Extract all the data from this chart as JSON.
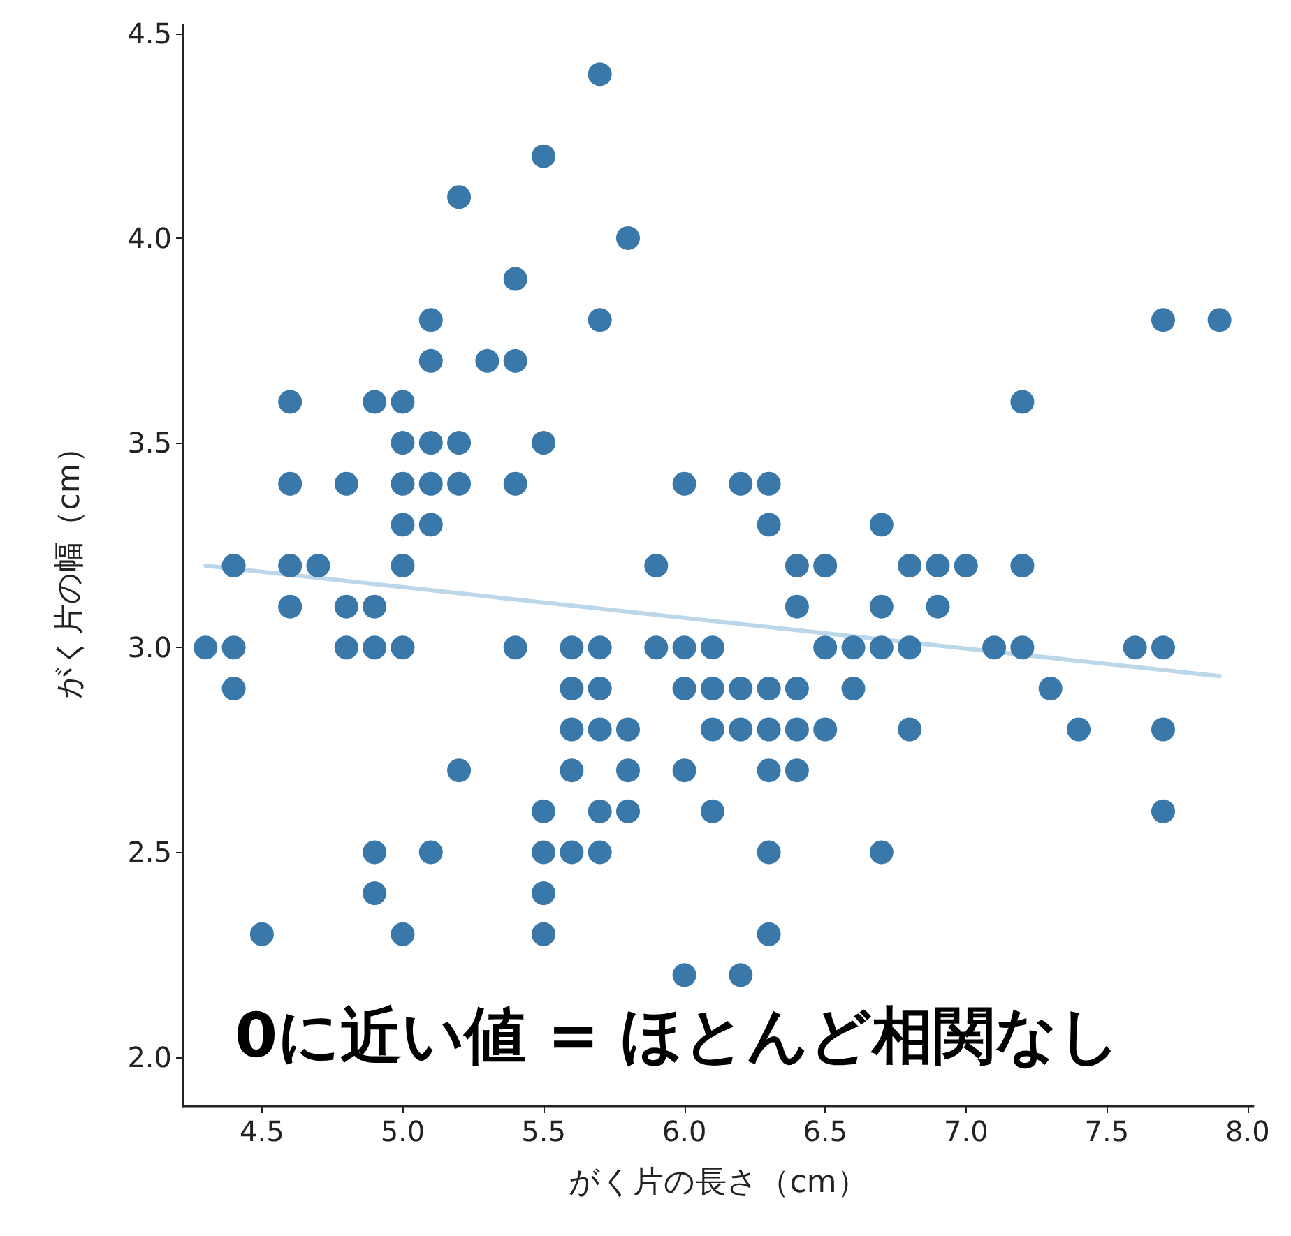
{
  "chart_data": {
    "type": "scatter",
    "xlabel": "がく片の長さ（cm）",
    "ylabel": "がく片の幅（cm）",
    "annotations": [
      "0に近い値 = ほとんど相関なし"
    ],
    "xlim": [
      4.22,
      8.02
    ],
    "ylim": [
      1.88,
      4.52
    ],
    "xticks": [
      {
        "value": 4.5,
        "label": "4.5"
      },
      {
        "value": 5,
        "label": "5.0"
      },
      {
        "value": 5.5,
        "label": "5.5"
      },
      {
        "value": 6,
        "label": "6.0"
      },
      {
        "value": 6.5,
        "label": "6.5"
      },
      {
        "value": 7,
        "label": "7.0"
      },
      {
        "value": 7.5,
        "label": "7.5"
      },
      {
        "value": 8,
        "label": "8.0"
      }
    ],
    "yticks": [
      {
        "value": 2,
        "label": "2.0"
      },
      {
        "value": 2.5,
        "label": "2.5"
      },
      {
        "value": 3,
        "label": "3.0"
      },
      {
        "value": 3.5,
        "label": "3.5"
      },
      {
        "value": 4,
        "label": "4.0"
      },
      {
        "value": 4.5,
        "label": "4.5"
      }
    ],
    "grid": false,
    "marker": "circle",
    "series": [
      {
        "color": "#3a78a9",
        "x": [
          4.3,
          4.4,
          4.4,
          4.4,
          4.5,
          4.6,
          4.6,
          4.6,
          4.6,
          4.7,
          4.8,
          4.8,
          4.8,
          4.9,
          4.9,
          4.9,
          4.9,
          4.9,
          5.0,
          5.0,
          5.0,
          5.0,
          5.0,
          5.0,
          5.0,
          5.1,
          5.1,
          5.1,
          5.1,
          5.1,
          5.1,
          5.2,
          5.2,
          5.2,
          5.2,
          5.3,
          5.4,
          5.4,
          5.4,
          5.4,
          5.5,
          5.5,
          5.5,
          5.5,
          5.5,
          5.5,
          5.6,
          5.6,
          5.6,
          5.6,
          5.6,
          5.7,
          5.7,
          5.7,
          5.7,
          5.7,
          5.7,
          5.7,
          5.8,
          5.8,
          5.8,
          5.8,
          5.9,
          5.9,
          6.0,
          6.0,
          6.0,
          6.0,
          6.0,
          6.1,
          6.1,
          6.1,
          6.1,
          6.2,
          6.2,
          6.2,
          6.2,
          6.3,
          6.3,
          6.3,
          6.3,
          6.3,
          6.3,
          6.3,
          6.4,
          6.4,
          6.4,
          6.4,
          6.4,
          6.5,
          6.5,
          6.5,
          6.6,
          6.6,
          6.7,
          6.7,
          6.7,
          6.7,
          6.8,
          6.8,
          6.8,
          6.9,
          6.9,
          7.0,
          7.1,
          7.2,
          7.2,
          7.2,
          7.3,
          7.4,
          7.6,
          7.7,
          7.7,
          7.7,
          7.7,
          7.9
        ],
        "values": [
          3.0,
          2.9,
          3.0,
          3.2,
          2.3,
          3.1,
          3.4,
          3.6,
          3.2,
          3.2,
          3.4,
          3.0,
          3.1,
          3.0,
          3.1,
          3.6,
          2.4,
          2.5,
          3.6,
          3.4,
          3.0,
          3.2,
          3.5,
          3.3,
          2.3,
          3.5,
          3.8,
          3.7,
          3.3,
          3.4,
          2.5,
          3.5,
          3.4,
          4.1,
          2.7,
          3.7,
          3.9,
          3.7,
          3.4,
          3.0,
          4.2,
          3.5,
          2.3,
          2.4,
          2.5,
          2.6,
          2.9,
          3.0,
          2.5,
          2.7,
          2.8,
          4.4,
          3.8,
          2.8,
          2.6,
          3.0,
          2.9,
          2.5,
          4.0,
          2.7,
          2.6,
          2.8,
          3.0,
          3.2,
          2.2,
          2.9,
          2.7,
          3.4,
          3.0,
          2.9,
          2.8,
          3.0,
          2.6,
          2.2,
          2.9,
          2.8,
          3.4,
          3.3,
          2.5,
          2.3,
          2.9,
          2.7,
          2.8,
          3.4,
          3.2,
          2.9,
          2.7,
          2.8,
          3.1,
          2.8,
          3.0,
          3.2,
          2.9,
          3.0,
          3.1,
          3.0,
          2.5,
          3.3,
          2.8,
          3.0,
          3.2,
          3.1,
          3.2,
          3.2,
          3.0,
          3.6,
          3.2,
          3.0,
          2.9,
          2.8,
          3.0,
          3.8,
          2.6,
          2.8,
          3.0,
          3.8
        ]
      },
      {
        "type": "line",
        "marker": "none",
        "color": "#bcd6ea",
        "x": [
          4.3,
          7.9
        ],
        "values": [
          3.2,
          2.93
        ]
      }
    ]
  }
}
